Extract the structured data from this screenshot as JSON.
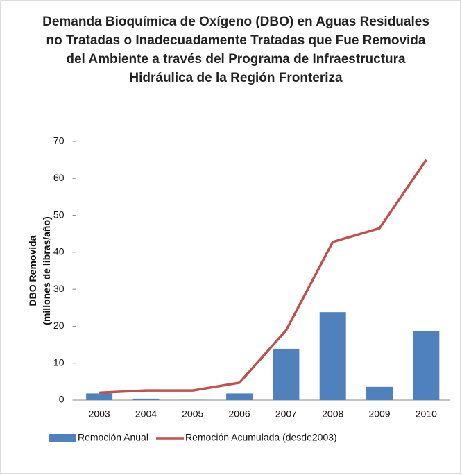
{
  "chart_data": {
    "type": "bar+line",
    "title": "Demanda Bioquímica de Oxígeno (DBO) en Aguas Residuales no Tratadas o Inadecuadamente Tratadas que Fue Removida del Ambiente a través del Programa de Infraestructura Hidráulica de la Región Fronteriza",
    "ylabel": [
      "DBO Removida",
      "(millones de libras/año)"
    ],
    "categories": [
      "2003",
      "2004",
      "2005",
      "2006",
      "2007",
      "2008",
      "2009",
      "2010"
    ],
    "series": [
      {
        "name": "Remoción Anual",
        "type": "bar",
        "color": "#4f81bd",
        "values": [
          1.8,
          0.4,
          0.1,
          1.8,
          13.9,
          23.8,
          3.6,
          18.6
        ]
      },
      {
        "name": "Remoción Acumulada (desde2003)",
        "type": "line",
        "color": "#c0504d",
        "values": [
          2.0,
          2.6,
          2.6,
          4.7,
          18.9,
          42.8,
          46.5,
          65.0
        ]
      }
    ],
    "ylim": [
      0,
      70
    ],
    "yticks": [
      0,
      10,
      20,
      30,
      40,
      50,
      60,
      70
    ],
    "legend": "bottom"
  }
}
